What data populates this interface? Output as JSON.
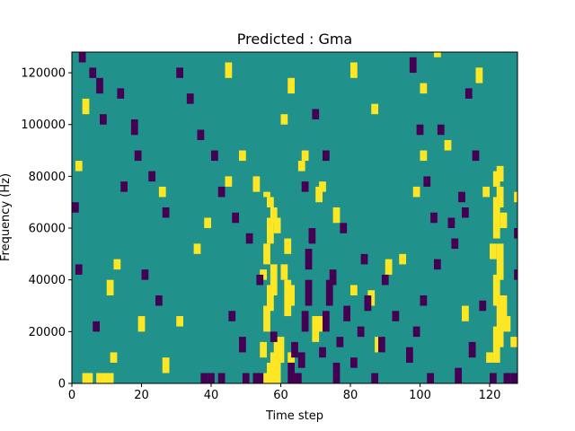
{
  "chart_data": {
    "type": "heatmap",
    "title": "Predicted : Gma",
    "xlabel": "Time step",
    "ylabel": "Frequency (Hz)",
    "xlim": [
      0,
      128
    ],
    "ylim": [
      0,
      128000
    ],
    "xticks": [
      0,
      20,
      40,
      60,
      80,
      100,
      120
    ],
    "yticks": [
      0,
      20000,
      40000,
      60000,
      80000,
      100000,
      120000
    ],
    "xtick_labels": [
      "0",
      "20",
      "40",
      "60",
      "80",
      "100",
      "120"
    ],
    "ytick_labels": [
      "0",
      "20000",
      "40000",
      "60000",
      "80000",
      "100000",
      "120000"
    ],
    "grid": false,
    "n_time_steps": 128,
    "n_freq_bins": 128,
    "freq_bin_hz": 1000,
    "values_description": "3-level class map: 0 = dark purple, 1 = teal background, 2 = yellow",
    "background_class": 1,
    "colors": {
      "0": "#440154",
      "1": "#21918c",
      "2": "#fde725"
    },
    "cells": [
      [
        55,
        0,
        2,
        4,
        2
      ],
      [
        56,
        0,
        2,
        8,
        2
      ],
      [
        57,
        0,
        2,
        12,
        2
      ],
      [
        58,
        0,
        2,
        16,
        2
      ],
      [
        55,
        20,
        2,
        10,
        2
      ],
      [
        56,
        28,
        2,
        10,
        2
      ],
      [
        57,
        34,
        2,
        12,
        2
      ],
      [
        55,
        46,
        2,
        8,
        2
      ],
      [
        56,
        54,
        2,
        10,
        2
      ],
      [
        57,
        62,
        2,
        6,
        2
      ],
      [
        56,
        68,
        2,
        4,
        2
      ],
      [
        55,
        72,
        2,
        2,
        2
      ],
      [
        54,
        10,
        2,
        6,
        2
      ],
      [
        54,
        40,
        2,
        4,
        2
      ],
      [
        58,
        58,
        2,
        6,
        2
      ],
      [
        59,
        8,
        2,
        10,
        2
      ],
      [
        121,
        8,
        2,
        14,
        2
      ],
      [
        122,
        14,
        2,
        20,
        2
      ],
      [
        121,
        30,
        2,
        12,
        2
      ],
      [
        122,
        40,
        2,
        14,
        2
      ],
      [
        121,
        56,
        2,
        16,
        2
      ],
      [
        122,
        68,
        2,
        8,
        2
      ],
      [
        123,
        24,
        2,
        10,
        2
      ],
      [
        120,
        48,
        2,
        6,
        2
      ],
      [
        123,
        60,
        2,
        6,
        2
      ],
      [
        121,
        76,
        2,
        6,
        2
      ],
      [
        122,
        78,
        2,
        6,
        2
      ],
      [
        61,
        26,
        2,
        14,
        2
      ],
      [
        62,
        30,
        2,
        8,
        2
      ],
      [
        60,
        40,
        2,
        6,
        2
      ],
      [
        61,
        50,
        2,
        6,
        2
      ],
      [
        62,
        8,
        2,
        4,
        2
      ],
      [
        69,
        16,
        2,
        10,
        2
      ],
      [
        70,
        20,
        2,
        6,
        2
      ],
      [
        70,
        70,
        2,
        6,
        2
      ],
      [
        71,
        74,
        2,
        4,
        2
      ],
      [
        3,
        0,
        2,
        4,
        2
      ],
      [
        4,
        0,
        2,
        4,
        2
      ],
      [
        7,
        0,
        2,
        4,
        2
      ],
      [
        8,
        0,
        2,
        4,
        2
      ],
      [
        9,
        0,
        2,
        4,
        2
      ],
      [
        10,
        0,
        2,
        4,
        2
      ],
      [
        11,
        8,
        2,
        4,
        2
      ],
      [
        1,
        82,
        2,
        4,
        2
      ],
      [
        3,
        104,
        2,
        6,
        2
      ],
      [
        10,
        34,
        2,
        6,
        2
      ],
      [
        12,
        44,
        2,
        4,
        2
      ],
      [
        19,
        20,
        2,
        6,
        2
      ],
      [
        25,
        72,
        2,
        4,
        2
      ],
      [
        30,
        22,
        2,
        4,
        2
      ],
      [
        35,
        50,
        2,
        4,
        2
      ],
      [
        38,
        60,
        2,
        4,
        2
      ],
      [
        44,
        76,
        2,
        4,
        2
      ],
      [
        48,
        86,
        2,
        4,
        2
      ],
      [
        52,
        74,
        2,
        6,
        2
      ],
      [
        65,
        82,
        2,
        4,
        2
      ],
      [
        66,
        86,
        2,
        4,
        2
      ],
      [
        75,
        62,
        2,
        6,
        2
      ],
      [
        80,
        34,
        2,
        4,
        2
      ],
      [
        85,
        30,
        2,
        6,
        2
      ],
      [
        87,
        12,
        2,
        6,
        2
      ],
      [
        90,
        42,
        2,
        6,
        2
      ],
      [
        94,
        46,
        2,
        4,
        2
      ],
      [
        98,
        72,
        2,
        4,
        2
      ],
      [
        100,
        86,
        2,
        4,
        2
      ],
      [
        104,
        126,
        2,
        2,
        2
      ],
      [
        112,
        24,
        2,
        6,
        2
      ],
      [
        118,
        72,
        2,
        4,
        2
      ],
      [
        119,
        8,
        2,
        4,
        2
      ],
      [
        124,
        20,
        2,
        6,
        2
      ],
      [
        126,
        14,
        2,
        4,
        2
      ],
      [
        127,
        70,
        2,
        4,
        2
      ],
      [
        26,
        4,
        2,
        6,
        2
      ],
      [
        44,
        118,
        2,
        6,
        2
      ],
      [
        60,
        100,
        2,
        4,
        2
      ],
      [
        62,
        112,
        2,
        6,
        2
      ],
      [
        80,
        118,
        2,
        6,
        2
      ],
      [
        86,
        104,
        2,
        4,
        2
      ],
      [
        100,
        112,
        2,
        4,
        2
      ],
      [
        107,
        90,
        2,
        4,
        2
      ],
      [
        116,
        116,
        2,
        6,
        2
      ],
      [
        62,
        0,
        0,
        8,
        2
      ],
      [
        63,
        10,
        0,
        6,
        2
      ],
      [
        64,
        0,
        0,
        4,
        2
      ],
      [
        65,
        6,
        0,
        6,
        2
      ],
      [
        66,
        20,
        0,
        8,
        2
      ],
      [
        67,
        30,
        0,
        10,
        2
      ],
      [
        67,
        44,
        0,
        8,
        2
      ],
      [
        68,
        54,
        0,
        6,
        2
      ],
      [
        71,
        10,
        0,
        4,
        2
      ],
      [
        72,
        20,
        0,
        8,
        2
      ],
      [
        73,
        30,
        0,
        10,
        2
      ],
      [
        74,
        38,
        0,
        6,
        2
      ],
      [
        75,
        0,
        0,
        8,
        2
      ],
      [
        76,
        14,
        0,
        4,
        2
      ],
      [
        78,
        24,
        0,
        6,
        2
      ],
      [
        80,
        6,
        0,
        4,
        2
      ],
      [
        82,
        18,
        0,
        4,
        2
      ],
      [
        84,
        28,
        0,
        6,
        2
      ],
      [
        86,
        0,
        0,
        4,
        2
      ],
      [
        88,
        12,
        0,
        6,
        2
      ],
      [
        92,
        24,
        0,
        4,
        2
      ],
      [
        96,
        8,
        0,
        6,
        2
      ],
      [
        98,
        18,
        0,
        4,
        2
      ],
      [
        100,
        30,
        0,
        4,
        2
      ],
      [
        102,
        0,
        0,
        4,
        2
      ],
      [
        104,
        44,
        0,
        4,
        2
      ],
      [
        108,
        60,
        0,
        4,
        2
      ],
      [
        110,
        0,
        0,
        6,
        2
      ],
      [
        111,
        70,
        0,
        4,
        2
      ],
      [
        114,
        10,
        0,
        6,
        2
      ],
      [
        120,
        0,
        0,
        4,
        2
      ],
      [
        124,
        0,
        0,
        4,
        2
      ],
      [
        126,
        0,
        0,
        4,
        2
      ],
      [
        2,
        124,
        0,
        4,
        2
      ],
      [
        5,
        118,
        0,
        4,
        2
      ],
      [
        7,
        112,
        0,
        6,
        2
      ],
      [
        8,
        100,
        0,
        4,
        2
      ],
      [
        13,
        110,
        0,
        4,
        2
      ],
      [
        17,
        96,
        0,
        6,
        2
      ],
      [
        18,
        86,
        0,
        4,
        2
      ],
      [
        22,
        78,
        0,
        4,
        2
      ],
      [
        26,
        64,
        0,
        4,
        2
      ],
      [
        30,
        118,
        0,
        4,
        2
      ],
      [
        33,
        108,
        0,
        4,
        2
      ],
      [
        36,
        94,
        0,
        4,
        2
      ],
      [
        40,
        86,
        0,
        4,
        2
      ],
      [
        42,
        72,
        0,
        4,
        2
      ],
      [
        46,
        62,
        0,
        4,
        2
      ],
      [
        50,
        54,
        0,
        4,
        2
      ],
      [
        53,
        38,
        0,
        4,
        2
      ],
      [
        57,
        16,
        0,
        4,
        2
      ],
      [
        66,
        74,
        0,
        4,
        2
      ],
      [
        69,
        102,
        0,
        4,
        2
      ],
      [
        72,
        86,
        0,
        4,
        2
      ],
      [
        77,
        58,
        0,
        4,
        2
      ],
      [
        83,
        46,
        0,
        4,
        2
      ],
      [
        89,
        38,
        0,
        4,
        2
      ],
      [
        97,
        120,
        0,
        6,
        2
      ],
      [
        99,
        96,
        0,
        4,
        2
      ],
      [
        101,
        76,
        0,
        4,
        2
      ],
      [
        103,
        62,
        0,
        4,
        2
      ],
      [
        105,
        96,
        0,
        4,
        2
      ],
      [
        109,
        52,
        0,
        4,
        2
      ],
      [
        112,
        64,
        0,
        4,
        2
      ],
      [
        113,
        110,
        0,
        4,
        2
      ],
      [
        115,
        86,
        0,
        4,
        2
      ],
      [
        117,
        28,
        0,
        4,
        2
      ],
      [
        127,
        56,
        0,
        4,
        2
      ],
      [
        127,
        40,
        0,
        4,
        2
      ],
      [
        24,
        30,
        0,
        4,
        2
      ],
      [
        20,
        40,
        0,
        4,
        2
      ],
      [
        14,
        74,
        0,
        4,
        2
      ],
      [
        0,
        66,
        0,
        4,
        2
      ],
      [
        1,
        42,
        0,
        4,
        2
      ],
      [
        6,
        20,
        0,
        4,
        2
      ],
      [
        45,
        24,
        0,
        4,
        2
      ],
      [
        48,
        12,
        0,
        6,
        2
      ],
      [
        37,
        0,
        0,
        4,
        2
      ],
      [
        39,
        0,
        0,
        4,
        2
      ],
      [
        42,
        0,
        0,
        4,
        2
      ],
      [
        49,
        0,
        0,
        4,
        2
      ],
      [
        52,
        0,
        0,
        4,
        2
      ],
      [
        53,
        0,
        0,
        4,
        2
      ]
    ]
  }
}
